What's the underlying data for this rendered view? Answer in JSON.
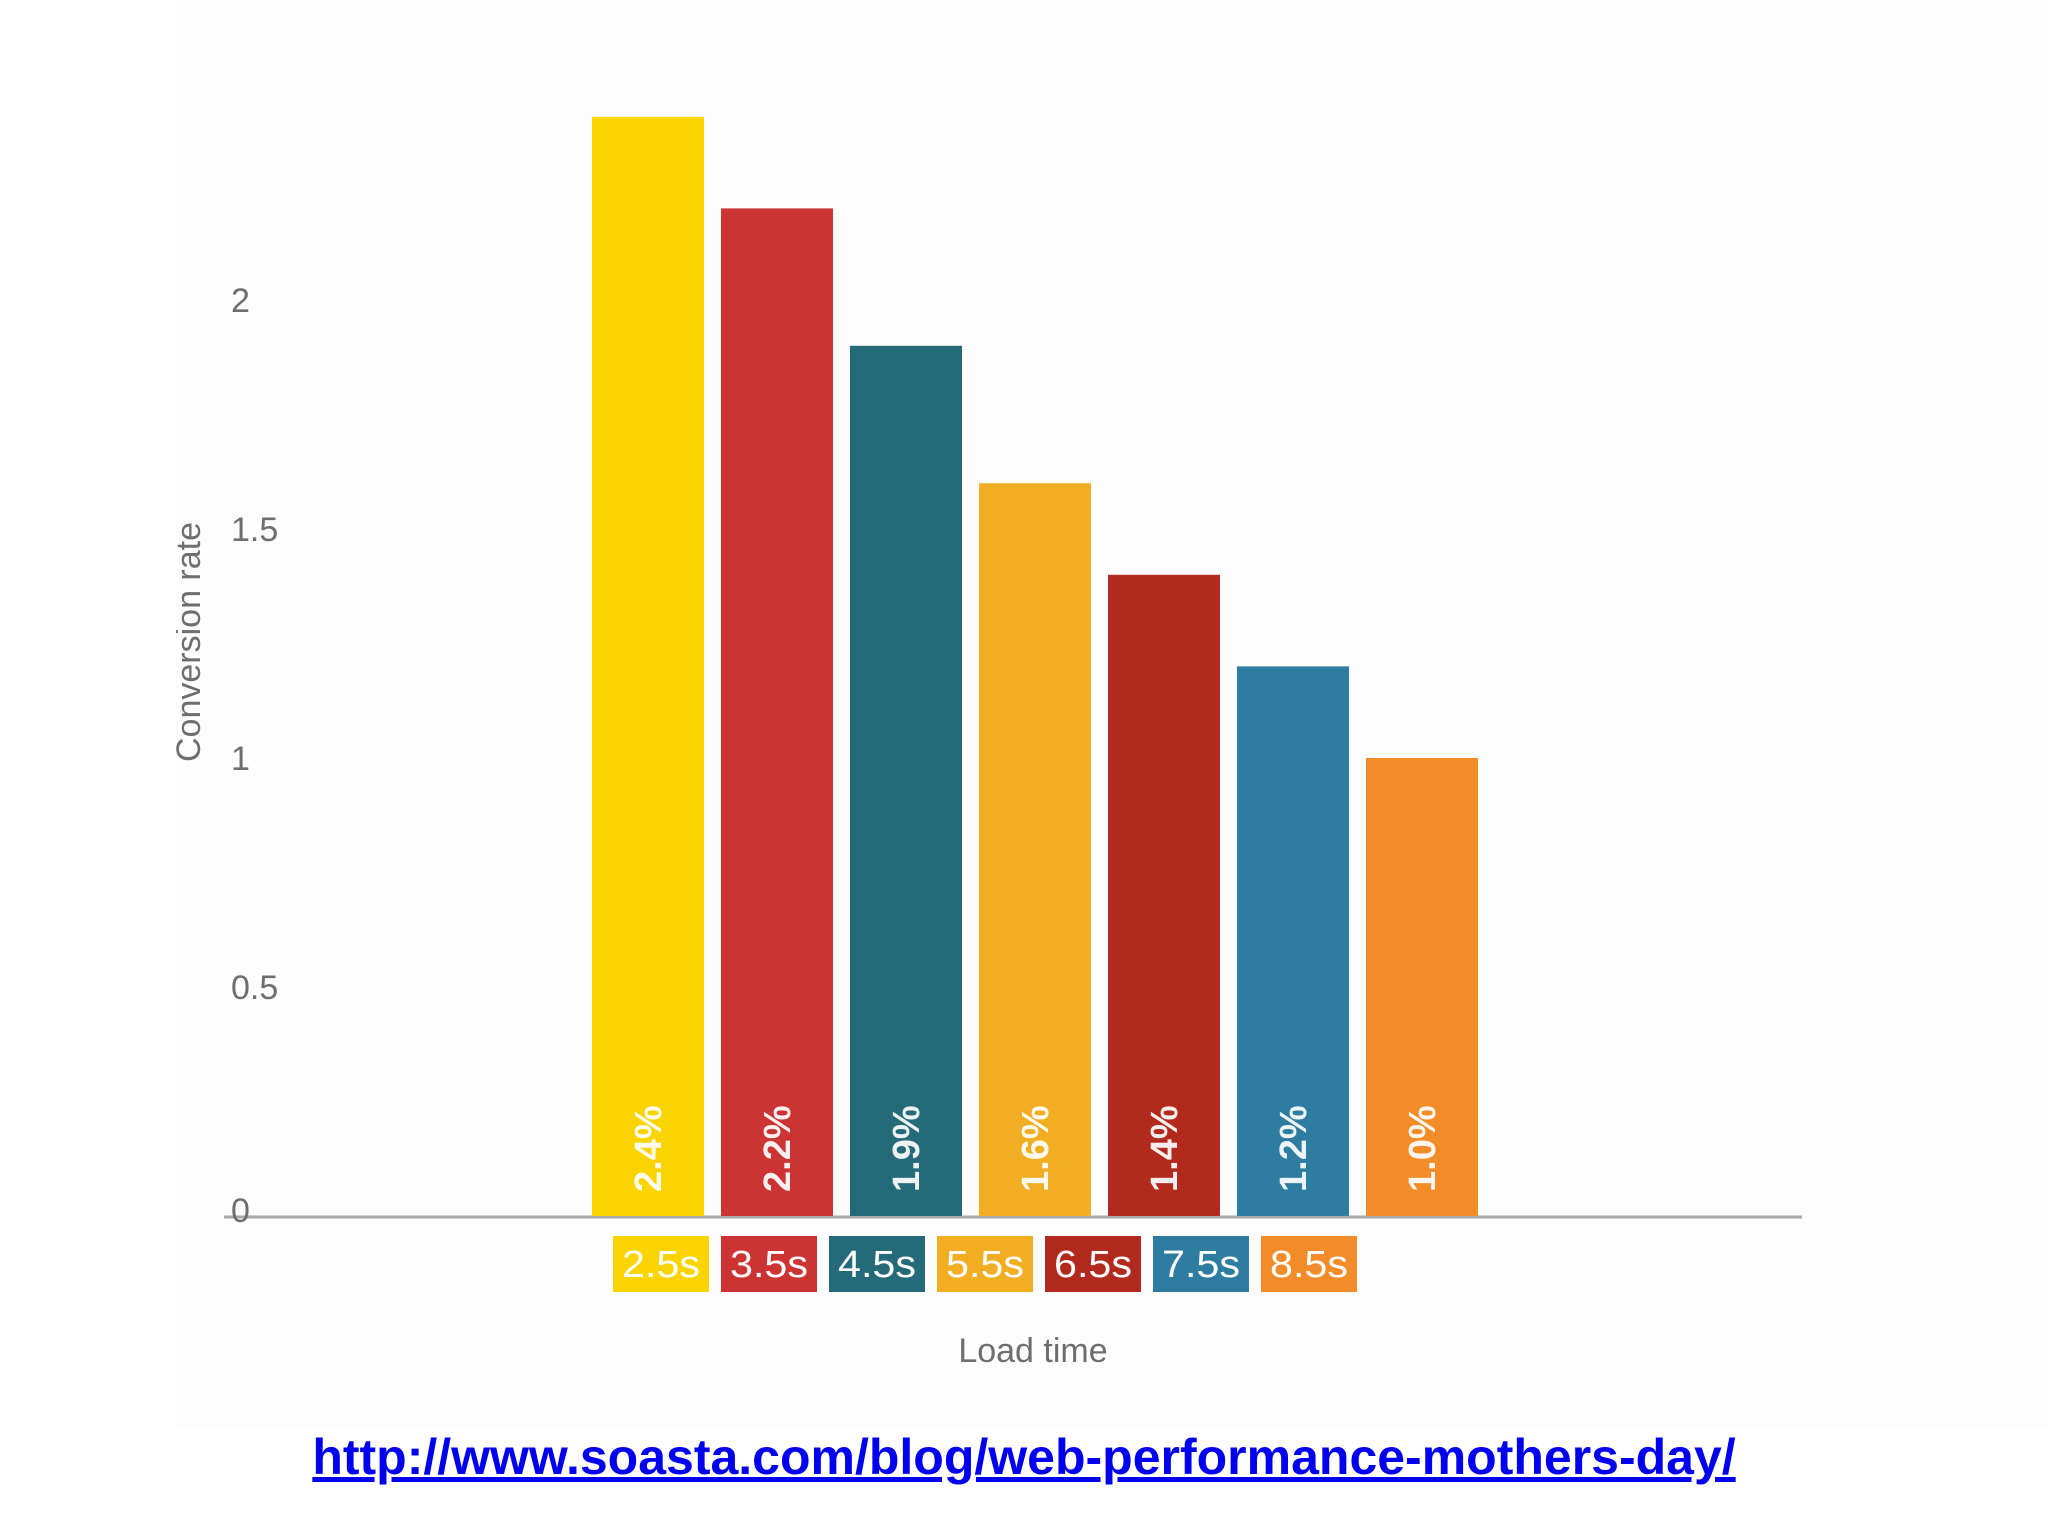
{
  "chart_data": {
    "type": "bar",
    "categories": [
      "2.5s",
      "3.5s",
      "4.5s",
      "5.5s",
      "6.5s",
      "7.5s",
      "8.5s"
    ],
    "values": [
      2.4,
      2.2,
      1.9,
      1.6,
      1.4,
      1.2,
      1.0
    ],
    "data_labels": [
      "2.4%",
      "2.2%",
      "1.9%",
      "1.6%",
      "1.4%",
      "1.2%",
      "1.0%"
    ],
    "colors": [
      "#fad400",
      "#cc3333",
      "#246a78",
      "#f2ae22",
      "#b22a1d",
      "#2e7da1",
      "#f28c28"
    ],
    "xlabel": "Load time",
    "ylabel": "Conversion rate",
    "yticks": [
      0,
      0.5,
      1,
      1.5,
      2
    ],
    "ytick_labels": [
      "0",
      "0.5",
      "1",
      "1.5",
      "2"
    ],
    "ylim": [
      0,
      2.4
    ],
    "grid": false,
    "legend": "none"
  },
  "source_link": "http://www.soasta.com/blog/web-performance-mothers-day/"
}
